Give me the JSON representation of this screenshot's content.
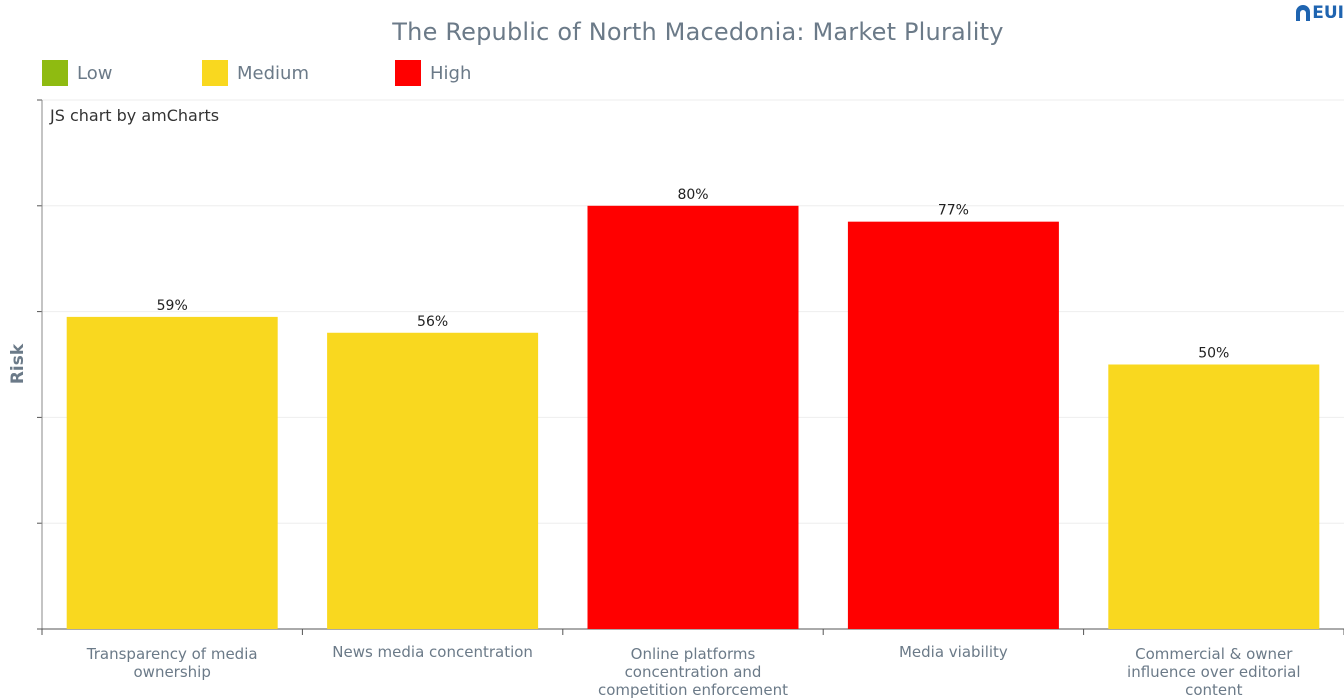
{
  "title": "The Republic of North Macedonia: Market Plurality",
  "credit": "JS chart by amCharts",
  "logo_text": "EUI",
  "legend": [
    {
      "label": "Low",
      "color": "#8fbb11"
    },
    {
      "label": "Medium",
      "color": "#f9d81f"
    },
    {
      "label": "High",
      "color": "#ff0000"
    }
  ],
  "chart_data": {
    "type": "bar",
    "title": "The Republic of North Macedonia: Market Plurality",
    "ylabel": "Risk",
    "xlabel": "",
    "ylim": [
      0,
      100
    ],
    "grid": true,
    "legend_position": "top-left",
    "categories": [
      "Transparency of media ownership",
      "News media concentration",
      "Online platforms concentration and competition enforcement",
      "Media viability",
      "Commercial & owner influence over editorial content"
    ],
    "category_labels": [
      "Transparency of media\nownership",
      "News media concentration",
      "Online platforms\nconcentration and\ncompetition enforcement",
      "Media viability",
      "Commercial & owner\ninfluence over editorial\ncontent"
    ],
    "values": [
      59,
      56,
      80,
      77,
      50
    ],
    "value_labels": [
      "59%",
      "56%",
      "80%",
      "77%",
      "50%"
    ],
    "risk_levels": [
      "Medium",
      "Medium",
      "High",
      "High",
      "Medium"
    ],
    "level_colors": {
      "Low": "#8fbb11",
      "Medium": "#f9d81f",
      "High": "#ff0000"
    }
  }
}
